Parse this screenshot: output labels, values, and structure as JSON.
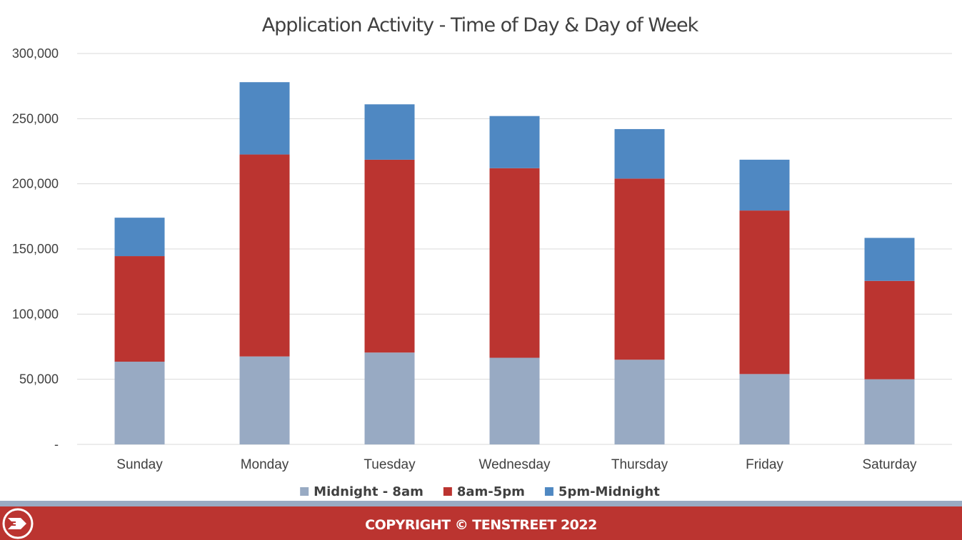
{
  "chart_data": {
    "type": "bar",
    "stacked": true,
    "title": "Application Activity - Time of Day & Day of Week",
    "categories": [
      "Sunday",
      "Monday",
      "Tuesday",
      "Wednesday",
      "Thursday",
      "Friday",
      "Saturday"
    ],
    "series": [
      {
        "name": "Midnight - 8am",
        "color": "#98aac3",
        "values": [
          63500,
          67500,
          70500,
          66500,
          65000,
          54000,
          50000
        ]
      },
      {
        "name": "8am-5pm",
        "color": "#bb3430",
        "values": [
          81000,
          155000,
          148000,
          145500,
          139000,
          125500,
          75500
        ]
      },
      {
        "name": "5pm-Midnight",
        "color": "#4f88c2",
        "values": [
          29500,
          55500,
          42500,
          40000,
          38000,
          39000,
          33000
        ]
      }
    ],
    "ylim": [
      0,
      300000
    ],
    "yticks": [
      0,
      50000,
      100000,
      150000,
      200000,
      250000,
      300000
    ],
    "ytick_labels": [
      "-",
      "50,000",
      "100,000",
      "150,000",
      "200,000",
      "250,000",
      "300,000"
    ],
    "grid": true,
    "legend_position": "bottom"
  },
  "footer": {
    "copyright": "COPYRIGHT © TENSTREET 2022",
    "logo_icon": "tenstreet-logo-icon",
    "stripe_color": "#9aabc3",
    "bar_color": "#bb3430"
  }
}
